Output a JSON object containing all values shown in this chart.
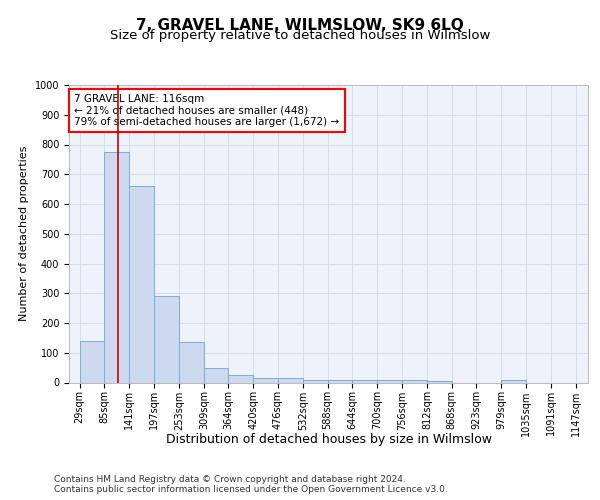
{
  "title": "7, GRAVEL LANE, WILMSLOW, SK9 6LQ",
  "subtitle": "Size of property relative to detached houses in Wilmslow",
  "xlabel": "Distribution of detached houses by size in Wilmslow",
  "ylabel": "Number of detached properties",
  "bin_edges": [
    29,
    85,
    141,
    197,
    253,
    309,
    364,
    420,
    476,
    532,
    588,
    644,
    700,
    756,
    812,
    868,
    923,
    979,
    1035,
    1091,
    1147
  ],
  "bar_heights": [
    140,
    775,
    660,
    290,
    135,
    50,
    25,
    15,
    15,
    8,
    10,
    10,
    8,
    8,
    5,
    0,
    0,
    10,
    0,
    0
  ],
  "bar_color": "#ccd9ee",
  "bar_edge_color": "#7badd4",
  "x_tick_labels": [
    "29sqm",
    "85sqm",
    "141sqm",
    "197sqm",
    "253sqm",
    "309sqm",
    "364sqm",
    "420sqm",
    "476sqm",
    "532sqm",
    "588sqm",
    "644sqm",
    "700sqm",
    "756sqm",
    "812sqm",
    "868sqm",
    "923sqm",
    "979sqm",
    "1035sqm",
    "1091sqm",
    "1147sqm"
  ],
  "ylim": [
    0,
    1000
  ],
  "xlim": [
    5,
    1175
  ],
  "yticks": [
    0,
    100,
    200,
    300,
    400,
    500,
    600,
    700,
    800,
    900,
    1000
  ],
  "property_line_x": 116,
  "property_line_color": "#cc0000",
  "annotation_box_text": "7 GRAVEL LANE: 116sqm\n← 21% of detached houses are smaller (448)\n79% of semi-detached houses are larger (1,672) →",
  "grid_color": "#d4ddef",
  "background_color": "#eef2fb",
  "footer_text": "Contains HM Land Registry data © Crown copyright and database right 2024.\nContains public sector information licensed under the Open Government Licence v3.0.",
  "title_fontsize": 11,
  "subtitle_fontsize": 9.5,
  "xlabel_fontsize": 9,
  "ylabel_fontsize": 8,
  "tick_fontsize": 7,
  "annotation_fontsize": 7.5,
  "footer_fontsize": 6.5
}
